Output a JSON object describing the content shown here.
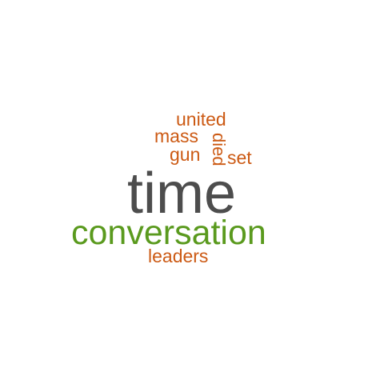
{
  "colors": {
    "background": "#ffffff",
    "primary_word": "#4d4d4d",
    "secondary_word": "#5a9a1e",
    "accent_word": "#cc5a14"
  },
  "words": {
    "time": "time",
    "conversation": "conversation",
    "leaders": "leaders",
    "united": "united",
    "mass": "mass",
    "gun": "gun",
    "set": "set",
    "died": "died"
  }
}
